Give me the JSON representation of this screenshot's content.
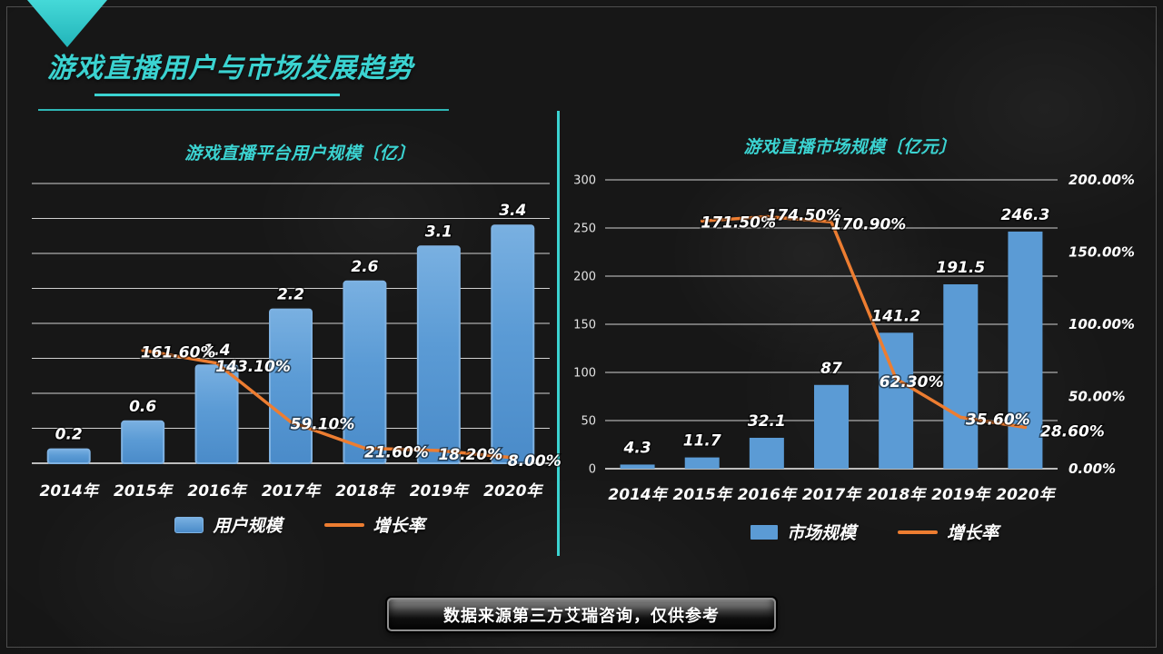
{
  "slide": {
    "title": "游戏直播用户与市场发展趋势",
    "source_note": "数据来源第三方艾瑞咨询，仅供参考"
  },
  "colors": {
    "accent": "#3bd3d1",
    "bar_blue": "#5b9bd5",
    "line_orange": "#ed7d31"
  },
  "chart_data": [
    {
      "type": "bar+line",
      "title": "游戏直播平台用户规模〔亿〕",
      "categories": [
        "2014年",
        "2015年",
        "2016年",
        "2017年",
        "2018年",
        "2019年",
        "2020年"
      ],
      "bar_color": "#5b9bd5",
      "line_color": "#ed7d31",
      "series": [
        {
          "name": "用户规模",
          "type": "bar",
          "unit": "亿",
          "values": [
            0.2,
            0.6,
            1.4,
            2.2,
            2.6,
            3.1,
            3.4
          ],
          "labels": [
            "0.2",
            "0.6",
            "1.4",
            "2.2",
            "2.6",
            "3.1",
            "3.4"
          ]
        },
        {
          "name": "增长率",
          "type": "line",
          "unit": "%",
          "values": [
            null,
            161.6,
            143.1,
            59.1,
            21.6,
            18.2,
            8.0
          ],
          "labels": [
            null,
            "161.60%",
            "143.10%",
            "59.10%",
            "21.60%",
            "18.20%",
            "8.00%"
          ],
          "label_offsets": [
            null,
            [
              39,
              2
            ],
            [
              40,
              3
            ],
            [
              35,
              2
            ],
            [
              35,
              4
            ],
            [
              35,
              4
            ],
            [
              24,
              3
            ]
          ]
        }
      ],
      "bar_axis": {
        "min": 0,
        "max": 4,
        "step": 0.5,
        "tick_labels": []
      },
      "pct_axis": {
        "min": 0,
        "max": 400,
        "tick_step": 50,
        "tick_labels": []
      },
      "legend": [
        "用户规模",
        "增长率"
      ],
      "grid": true,
      "legend_position": "bottom"
    },
    {
      "type": "bar+line",
      "title": "游戏直播市场规模〔亿元〕",
      "categories": [
        "2014年",
        "2015年",
        "2016年",
        "2017年",
        "2018年",
        "2019年",
        "2020年"
      ],
      "bar_color": "#5b9bd5",
      "line_color": "#ed7d31",
      "series": [
        {
          "name": "市场规模",
          "type": "bar",
          "unit": "亿元",
          "values": [
            4.3,
            11.7,
            32.1,
            87,
            141.2,
            191.5,
            246.3
          ],
          "labels": [
            "4.3",
            "11.7",
            "32.1",
            "87",
            "141.2",
            "191.5",
            "246.3"
          ]
        },
        {
          "name": "增长率",
          "type": "line",
          "unit": "%",
          "values": [
            null,
            171.5,
            174.5,
            170.9,
            62.3,
            35.6,
            28.6
          ],
          "labels": [
            null,
            "171.50%",
            "174.50%",
            "170.90%",
            "62.30%",
            "35.60%",
            "28.60%"
          ],
          "label_offsets": [
            null,
            [
              40,
              1
            ],
            [
              41,
              -2
            ],
            [
              41,
              2
            ],
            [
              17,
              3
            ],
            [
              41,
              2
            ],
            [
              52,
              4
            ]
          ]
        }
      ],
      "bar_axis": {
        "min": 0,
        "max": 300,
        "step": 50,
        "tick_labels": [
          "0",
          "50",
          "100",
          "150",
          "200",
          "250",
          "300"
        ]
      },
      "pct_axis": {
        "min": 0,
        "max": 200,
        "tick_step": 50,
        "tick_labels": [
          "0.00%",
          "50.00%",
          "100.00%",
          "150.00%",
          "200.00%"
        ]
      },
      "legend": [
        "市场规模",
        "增长率"
      ],
      "grid": true,
      "legend_position": "bottom"
    }
  ]
}
